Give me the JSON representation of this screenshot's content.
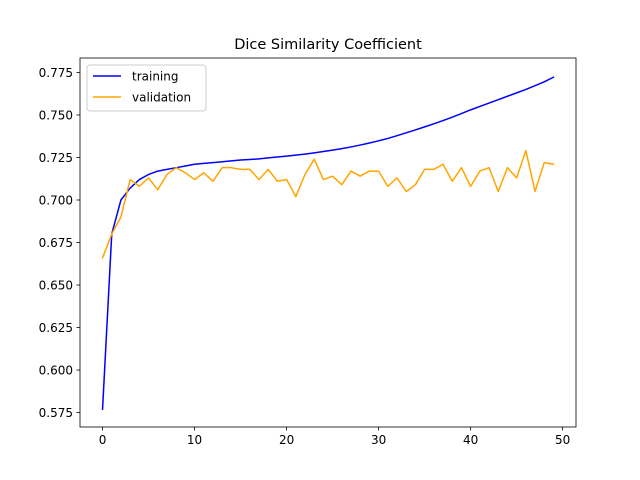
{
  "chart_data": {
    "type": "line",
    "title": "Dice Similarity Coefficient",
    "xlabel": "",
    "ylabel": "",
    "xlim": [
      -2.45,
      51.45
    ],
    "ylim": [
      0.5665,
      0.7835
    ],
    "xticks": [
      0,
      10,
      20,
      30,
      40,
      50
    ],
    "yticks": [
      0.575,
      0.6,
      0.625,
      0.65,
      0.675,
      0.7,
      0.725,
      0.75,
      0.775
    ],
    "ytick_labels": [
      "0.575",
      "0.600",
      "0.625",
      "0.650",
      "0.675",
      "0.700",
      "0.725",
      "0.750",
      "0.775"
    ],
    "grid": false,
    "legend_position": "upper-left",
    "x": [
      0,
      1,
      2,
      3,
      4,
      5,
      6,
      7,
      8,
      9,
      10,
      11,
      12,
      13,
      14,
      15,
      16,
      17,
      18,
      19,
      20,
      21,
      22,
      23,
      24,
      25,
      26,
      27,
      28,
      29,
      30,
      31,
      32,
      33,
      34,
      35,
      36,
      37,
      38,
      39,
      40,
      41,
      42,
      43,
      44,
      45,
      46,
      47,
      48,
      49
    ],
    "series": [
      {
        "name": "training",
        "color": "#0000ff",
        "values": [
          0.577,
          0.68,
          0.7,
          0.707,
          0.712,
          0.715,
          0.717,
          0.718,
          0.719,
          0.72,
          0.721,
          0.7215,
          0.722,
          0.7225,
          0.723,
          0.7235,
          0.7238,
          0.7242,
          0.7248,
          0.7253,
          0.7258,
          0.7264,
          0.727,
          0.7277,
          0.7285,
          0.7293,
          0.7302,
          0.7312,
          0.7323,
          0.7335,
          0.7348,
          0.7362,
          0.7378,
          0.7395,
          0.7412,
          0.743,
          0.7448,
          0.7467,
          0.7487,
          0.7508,
          0.753,
          0.755,
          0.757,
          0.759,
          0.761,
          0.763,
          0.765,
          0.7672,
          0.7695,
          0.7722
        ]
      },
      {
        "name": "validation",
        "color": "#ffa500",
        "values": [
          0.666,
          0.68,
          0.69,
          0.712,
          0.708,
          0.713,
          0.706,
          0.715,
          0.719,
          0.716,
          0.712,
          0.716,
          0.711,
          0.719,
          0.719,
          0.718,
          0.718,
          0.712,
          0.718,
          0.711,
          0.712,
          0.702,
          0.715,
          0.724,
          0.712,
          0.714,
          0.709,
          0.717,
          0.714,
          0.717,
          0.717,
          0.708,
          0.713,
          0.705,
          0.709,
          0.718,
          0.718,
          0.721,
          0.711,
          0.719,
          0.708,
          0.717,
          0.719,
          0.705,
          0.719,
          0.713,
          0.729,
          0.705,
          0.722,
          0.721
        ]
      }
    ]
  }
}
